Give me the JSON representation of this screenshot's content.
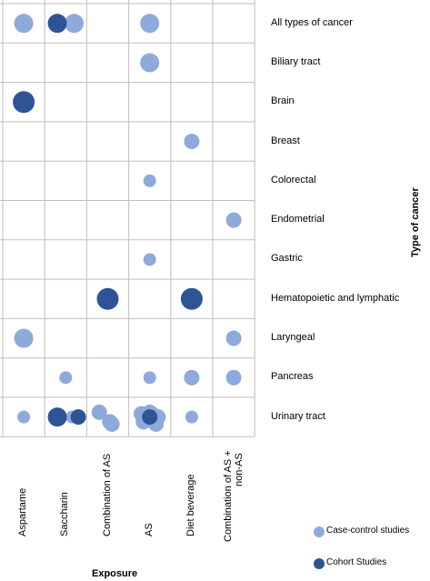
{
  "chart_data": {
    "type": "scatter",
    "columns": [
      "Aspartame",
      "Saccharin",
      "Combination of AS",
      "AS",
      "Diet beverage",
      "Combination of AS + non-AS"
    ],
    "rows": [
      "All types of cancer",
      "Biliary tract",
      "Brain",
      "Breast",
      "Colorectal",
      "Endometrial",
      "Gastric",
      "Hematopoietic and lymphatic",
      "Laryngeal",
      "Pancreas",
      "Urinary tract"
    ],
    "xlabel": "Exposure",
    "ylabel": "Type of cancer",
    "legend": [
      {
        "name": "Case-control studies",
        "color": "#8eaadb"
      },
      {
        "name": "Cohort Studies",
        "color": "#2f5496"
      }
    ],
    "legend_position": "bottom-right",
    "points": [
      {
        "row": 0,
        "col": 0,
        "study": "case-control",
        "size": "large"
      },
      {
        "row": 0,
        "col": 1,
        "study": "case-control",
        "size": "large",
        "offset": 0.2
      },
      {
        "row": 0,
        "col": 1,
        "study": "cohort",
        "size": "large",
        "offset": -0.2
      },
      {
        "row": 0,
        "col": 3,
        "study": "case-control",
        "size": "large"
      },
      {
        "row": 1,
        "col": 3,
        "study": "case-control",
        "size": "large"
      },
      {
        "row": 2,
        "col": 0,
        "study": "cohort",
        "size": "xlarge"
      },
      {
        "row": 3,
        "col": 4,
        "study": "case-control",
        "size": "medium"
      },
      {
        "row": 4,
        "col": 3,
        "study": "case-control",
        "size": "small"
      },
      {
        "row": 5,
        "col": 5,
        "study": "case-control",
        "size": "medium"
      },
      {
        "row": 6,
        "col": 3,
        "study": "case-control",
        "size": "small"
      },
      {
        "row": 7,
        "col": 2,
        "study": "cohort",
        "size": "xlarge"
      },
      {
        "row": 7,
        "col": 4,
        "study": "cohort",
        "size": "xlarge"
      },
      {
        "row": 8,
        "col": 0,
        "study": "case-control",
        "size": "large"
      },
      {
        "row": 8,
        "col": 5,
        "study": "case-control",
        "size": "medium"
      },
      {
        "row": 9,
        "col": 1,
        "study": "case-control",
        "size": "small"
      },
      {
        "row": 9,
        "col": 3,
        "study": "case-control",
        "size": "small"
      },
      {
        "row": 9,
        "col": 4,
        "study": "case-control",
        "size": "medium"
      },
      {
        "row": 9,
        "col": 5,
        "study": "case-control",
        "size": "medium"
      },
      {
        "row": 10,
        "col": 0,
        "study": "case-control",
        "size": "small"
      },
      {
        "row": 10,
        "col": 1,
        "study": "case-control",
        "size": "small",
        "offset": 0.15
      },
      {
        "row": 10,
        "col": 1,
        "study": "cohort",
        "size": "large",
        "offset": -0.2
      },
      {
        "row": 10,
        "col": 1,
        "study": "cohort",
        "size": "medium",
        "offset": 0.3
      },
      {
        "row": 10,
        "col": 2,
        "study": "case-control",
        "size": "medium",
        "offset": -0.2
      },
      {
        "row": 10,
        "col": 2,
        "study": "case-control",
        "size": "medium",
        "offset": 0.05
      },
      {
        "row": 10,
        "col": 2,
        "study": "case-control",
        "size": "medium",
        "offset": 0.1
      },
      {
        "row": 10,
        "col": 3,
        "study": "case-control",
        "size": "medium",
        "offset": -0.2
      },
      {
        "row": 10,
        "col": 3,
        "study": "case-control",
        "size": "medium",
        "offset": 0.2
      },
      {
        "row": 10,
        "col": 3,
        "study": "case-control",
        "size": "medium",
        "offset": 0.0
      },
      {
        "row": 10,
        "col": 3,
        "study": "case-control",
        "size": "medium",
        "offset": -0.15
      },
      {
        "row": 10,
        "col": 3,
        "study": "case-control",
        "size": "medium",
        "offset": 0.15
      },
      {
        "row": 10,
        "col": 3,
        "study": "case-control",
        "size": "medium",
        "offset": 0.05
      },
      {
        "row": 10,
        "col": 3,
        "study": "cohort",
        "size": "medium",
        "offset": 0.0
      },
      {
        "row": 10,
        "col": 4,
        "study": "case-control",
        "size": "small"
      }
    ]
  }
}
